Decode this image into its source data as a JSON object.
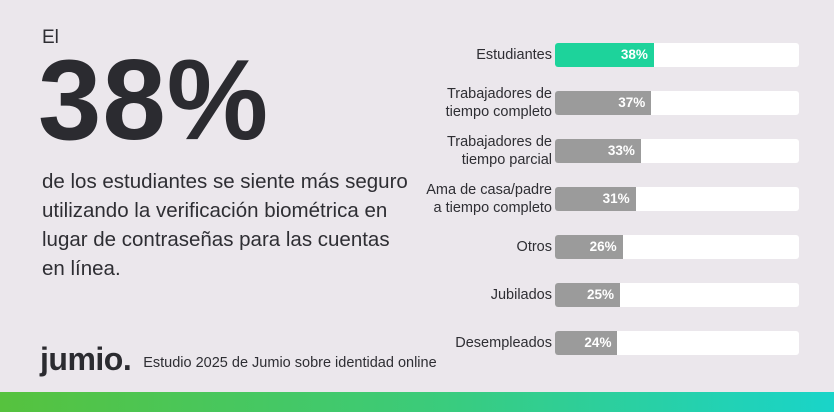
{
  "intro": "El",
  "stat": "38%",
  "stat_text": "de los estudiantes se siente más seguro utilizando la verificación biométrica en lugar de contraseñas para las cuentas en línea.",
  "brand": {
    "logo": "jumio",
    "source": "Estudio 2025 de Jumio sobre identidad online"
  },
  "colors": {
    "highlight": "#1dd39b",
    "bar": "#9b9b9b",
    "track": "#ffffff",
    "text": "#2e2e33"
  },
  "chart_data": {
    "type": "bar",
    "orientation": "horizontal",
    "categories": [
      "Estudiantes",
      "Trabajadores de\ntiempo completo",
      "Trabajadores de\ntiempo parcial",
      "Ama de casa/padre\na tiempo completo",
      "Otros",
      "Jubilados",
      "Desempleados"
    ],
    "values": [
      38,
      37,
      33,
      31,
      26,
      25,
      24
    ],
    "value_labels": [
      "38%",
      "37%",
      "33%",
      "31%",
      "26%",
      "25%",
      "24%"
    ],
    "highlight_index": 0,
    "xlim": [
      0,
      100
    ],
    "grid": false
  }
}
